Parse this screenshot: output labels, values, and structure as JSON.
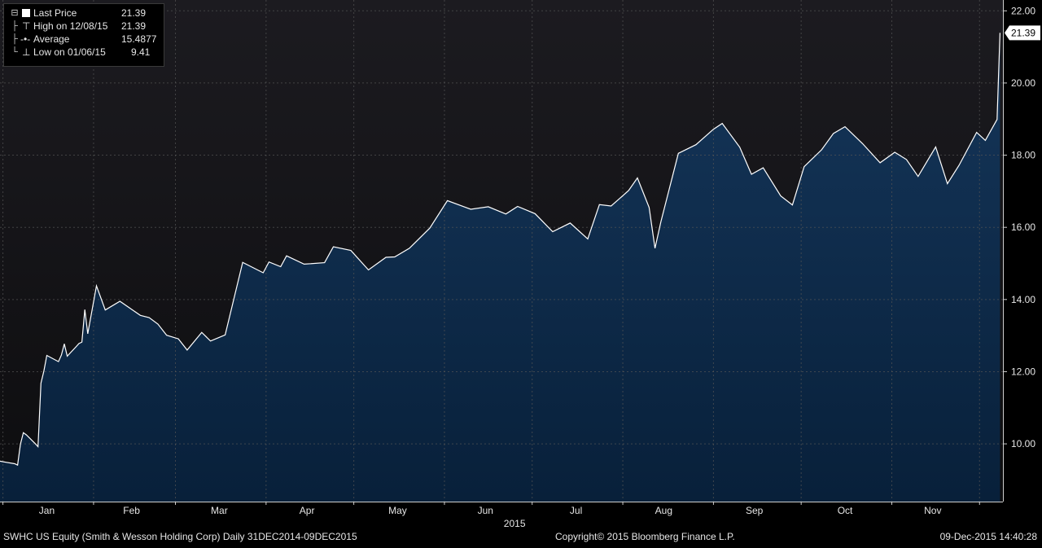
{
  "chart_data": {
    "type": "area",
    "series": [
      {
        "name": "Last Price",
        "dates": [
          "12/31/14",
          "01/02/15",
          "01/05/15",
          "01/06/15",
          "01/07/15",
          "01/08/15",
          "01/09/15",
          "01/12/15",
          "01/13/15",
          "01/14/15",
          "01/15/15",
          "01/16/15",
          "01/20/15",
          "01/21/15",
          "01/22/15",
          "01/23/15",
          "01/26/15",
          "01/27/15",
          "01/28/15",
          "01/29/15",
          "01/30/15",
          "02/02/15",
          "02/05/15",
          "02/10/15",
          "02/17/15",
          "02/20/15",
          "02/23/15",
          "02/26/15",
          "03/02/15",
          "03/05/15",
          "03/10/15",
          "03/13/15",
          "03/18/15",
          "03/24/15",
          "03/31/15",
          "04/02/15",
          "04/06/15",
          "04/08/15",
          "04/14/15",
          "04/21/15",
          "04/24/15",
          "04/30/15",
          "05/06/15",
          "05/12/15",
          "05/15/15",
          "05/20/15",
          "05/27/15",
          "06/02/15",
          "06/10/15",
          "06/16/15",
          "06/22/15",
          "06/26/15",
          "07/02/15",
          "07/08/15",
          "07/14/15",
          "07/20/15",
          "07/24/15",
          "07/28/15",
          "08/03/15",
          "08/06/15",
          "08/10/15",
          "08/12/15",
          "08/14/15",
          "08/20/15",
          "08/26/15",
          "09/01/15",
          "09/04/15",
          "09/10/15",
          "09/14/15",
          "09/18/15",
          "09/24/15",
          "09/28/15",
          "10/02/15",
          "10/08/15",
          "10/12/15",
          "10/16/15",
          "10/22/15",
          "10/28/15",
          "11/02/15",
          "11/06/15",
          "11/10/15",
          "11/16/15",
          "11/20/15",
          "11/24/15",
          "11/30/15",
          "12/03/15",
          "12/07/15",
          "12/08/15"
        ],
        "values": [
          9.52,
          9.49,
          9.45,
          9.41,
          9.99,
          10.31,
          10.25,
          10.01,
          9.92,
          11.68,
          12.02,
          12.45,
          12.28,
          12.46,
          12.77,
          12.43,
          12.69,
          12.78,
          12.82,
          13.72,
          13.05,
          14.38,
          13.71,
          13.95,
          13.56,
          13.5,
          13.32,
          13.01,
          12.91,
          12.6,
          13.09,
          12.85,
          13.02,
          15.03,
          14.74,
          15.04,
          14.91,
          15.21,
          14.98,
          15.02,
          15.46,
          15.36,
          14.82,
          15.17,
          15.18,
          15.42,
          15.98,
          16.74,
          16.5,
          16.57,
          16.37,
          16.58,
          16.38,
          15.88,
          16.12,
          15.68,
          16.63,
          16.59,
          17.02,
          17.37,
          16.55,
          15.42,
          16.15,
          18.05,
          18.29,
          18.72,
          18.88,
          18.22,
          17.47,
          17.65,
          16.87,
          16.62,
          17.68,
          18.15,
          18.6,
          18.79,
          18.32,
          17.79,
          18.08,
          17.88,
          17.41,
          18.23,
          17.21,
          17.72,
          18.63,
          18.41,
          18.99,
          21.39
        ]
      }
    ],
    "legend": {
      "last_price_label": "Last Price",
      "last_price": "21.39",
      "high_label": "High on 12/08/15",
      "high": "21.39",
      "average_label": "Average",
      "average": "15.4877",
      "low_label": "Low on 01/06/15",
      "low": "9.41",
      "position": "top-left"
    },
    "last_price_tag": "21.39",
    "x_range": [
      "12/31/14",
      "12/09/15"
    ],
    "ylim": [
      8.4,
      22.3
    ],
    "y_ticks": [
      "22.00",
      "20.00",
      "18.00",
      "16.00",
      "14.00",
      "12.00",
      "10.00"
    ],
    "y_tick_values": [
      22,
      20,
      18,
      16,
      14,
      12,
      10
    ],
    "x_month_labels": [
      "Jan",
      "Feb",
      "Mar",
      "Apr",
      "May",
      "Jun",
      "Jul",
      "Aug",
      "Sep",
      "Oct",
      "Nov"
    ],
    "x_month_mid_dates": [
      "01/16/15",
      "02/14/15",
      "03/16/15",
      "04/15/15",
      "05/16/15",
      "06/15/15",
      "07/16/15",
      "08/15/15",
      "09/15/15",
      "10/16/15",
      "11/15/15"
    ],
    "x_month_start_dates": [
      "01/01/15",
      "02/01/15",
      "03/01/15",
      "04/01/15",
      "05/01/15",
      "06/01/15",
      "07/01/15",
      "08/01/15",
      "09/01/15",
      "10/01/15",
      "11/01/15",
      "12/01/15"
    ],
    "x_year_label": "2015",
    "grid": true,
    "y_axis_side": "right"
  },
  "footer": {
    "left": "SWHC US Equity (Smith & Wesson Holding Corp)  Daily 31DEC2014-09DEC2015",
    "center": "Copyright© 2015 Bloomberg Finance L.P.",
    "right": "09-Dec-2015 14:40:28"
  },
  "colors": {
    "background": "#000000",
    "plot_top": "#1c1b20",
    "plot_bottom": "#0d0d0f",
    "area_top": "#15365a",
    "area_bottom": "#08203a",
    "line": "#ffffff",
    "grid": "#555555"
  }
}
